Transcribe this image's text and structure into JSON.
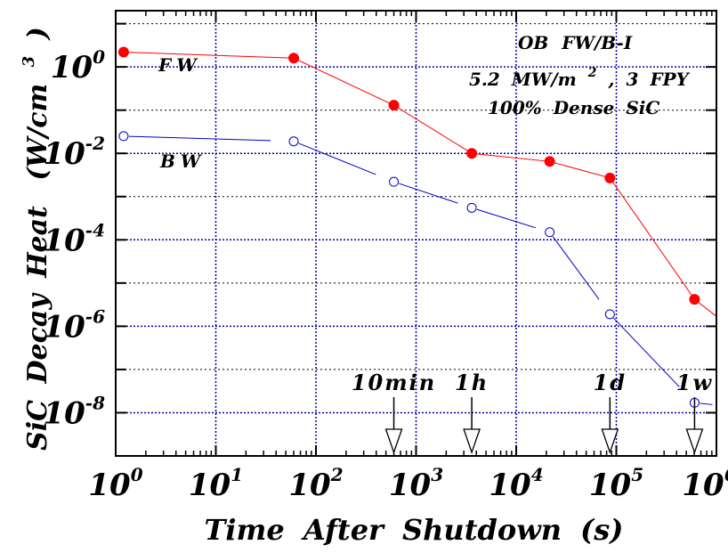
{
  "chart_data": {
    "type": "line",
    "xscale": "log",
    "yscale": "log",
    "xlim": [
      1,
      1000000
    ],
    "ylim": [
      1e-09,
      20
    ],
    "grid": true,
    "xlabel": "Time After Shutdown (s)",
    "ylabel_main": "SiC Decay Heat",
    "ylabel_unit": "(W/cm",
    "ylabel_sup": "3",
    "ylabel_close": ")",
    "xticks": [
      {
        "value": 1,
        "base": "10",
        "exp": "0"
      },
      {
        "value": 10,
        "base": "10",
        "exp": "1"
      },
      {
        "value": 100,
        "base": "10",
        "exp": "2"
      },
      {
        "value": 1000,
        "base": "10",
        "exp": "3"
      },
      {
        "value": 10000,
        "base": "10",
        "exp": "4"
      },
      {
        "value": 100000,
        "base": "10",
        "exp": "5"
      },
      {
        "value": 1000000,
        "base": "10",
        "exp": "6"
      }
    ],
    "yticks": [
      {
        "value": 1,
        "base": "10",
        "exp": "0"
      },
      {
        "value": 0.01,
        "base": "10",
        "exp": "-2"
      },
      {
        "value": 0.0001,
        "base": "10",
        "exp": "-4"
      },
      {
        "value": 1e-06,
        "base": "10",
        "exp": "-6"
      },
      {
        "value": 1e-08,
        "base": "10",
        "exp": "-8"
      }
    ],
    "annotation": {
      "line1": "OB FW/B-I",
      "line2a": "5.2 MW/m",
      "line2sup": "2",
      "line2b": ", 3 FPY",
      "line3": "100% Dense SiC"
    },
    "series": [
      {
        "name": "FW",
        "color": "#ff0000",
        "marker": "filled-circle",
        "line": "solid",
        "x": [
          1.2,
          60,
          600,
          3600,
          21600,
          86400,
          604800,
          1000000
        ],
        "y": [
          2.2,
          1.6,
          0.13,
          0.01,
          0.0065,
          0.0027,
          4.2e-06,
          1.7e-06
        ]
      },
      {
        "name": "BW",
        "color": "#0000cc",
        "marker": "open-circle",
        "line": "dashed",
        "x": [
          1.2,
          60,
          600,
          3600,
          21600,
          86400,
          604800,
          1000000
        ],
        "y": [
          0.025,
          0.019,
          0.0022,
          0.00055,
          0.00015,
          1.9e-06,
          1.7e-08,
          1.5e-08
        ]
      }
    ],
    "time_markers": [
      {
        "label": "10min",
        "x": 600
      },
      {
        "label": "1h",
        "x": 3600
      },
      {
        "label": "1d",
        "x": 86400
      },
      {
        "label": "1w",
        "x": 604800
      }
    ]
  }
}
